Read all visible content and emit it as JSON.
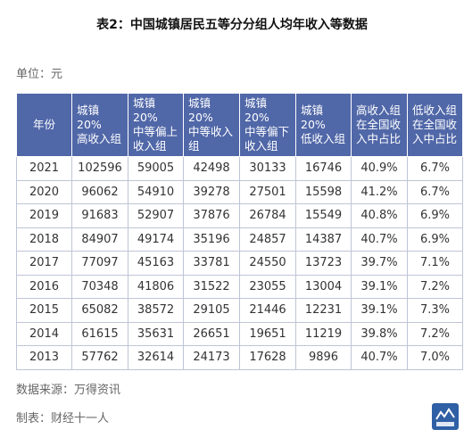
{
  "title": "表2：中国城镇居民五等分分组人均年收入等数据",
  "unit": "单位：元",
  "table": {
    "headers": [
      "年份",
      "城镇20%\n高收入组",
      "城镇20%\n中等偏上\n收入组",
      "城镇20%\n中等收入\n组",
      "城镇20%\n中等偏下\n收入组",
      "城镇20%\n低收入组",
      "高收入组\n在全国收\n入中占比",
      "低收入组\n在全国收\n入中占比"
    ],
    "rows": [
      [
        "2021",
        "102596",
        "59005",
        "42498",
        "30133",
        "16746",
        "40.9%",
        "6.7%"
      ],
      [
        "2020",
        "96062",
        "54910",
        "39278",
        "27501",
        "15598",
        "41.2%",
        "6.7%"
      ],
      [
        "2019",
        "91683",
        "52907",
        "37876",
        "26784",
        "15549",
        "40.8%",
        "6.9%"
      ],
      [
        "2018",
        "84907",
        "49174",
        "35196",
        "24857",
        "14387",
        "40.7%",
        "6.9%"
      ],
      [
        "2017",
        "77097",
        "45163",
        "33781",
        "24550",
        "13723",
        "39.7%",
        "7.1%"
      ],
      [
        "2016",
        "70348",
        "41806",
        "31522",
        "23055",
        "13004",
        "39.1%",
        "7.2%"
      ],
      [
        "2015",
        "65082",
        "38572",
        "29105",
        "21446",
        "12231",
        "39.1%",
        "7.3%"
      ],
      [
        "2014",
        "61615",
        "35631",
        "26651",
        "19651",
        "11219",
        "39.8%",
        "7.2%"
      ],
      [
        "2013",
        "57762",
        "32614",
        "24173",
        "17628",
        "9896",
        "40.7%",
        "7.0%"
      ]
    ]
  },
  "source": "数据来源：万得资讯",
  "maker": "制表：财经十一人",
  "logo": {
    "icon": "caijing-logo-icon",
    "text": "财经十一人",
    "color": "#2f5fa5"
  },
  "colors": {
    "header_bg": "#5067a8",
    "header_text": "#ffffff",
    "border": "#bfc5d6"
  }
}
